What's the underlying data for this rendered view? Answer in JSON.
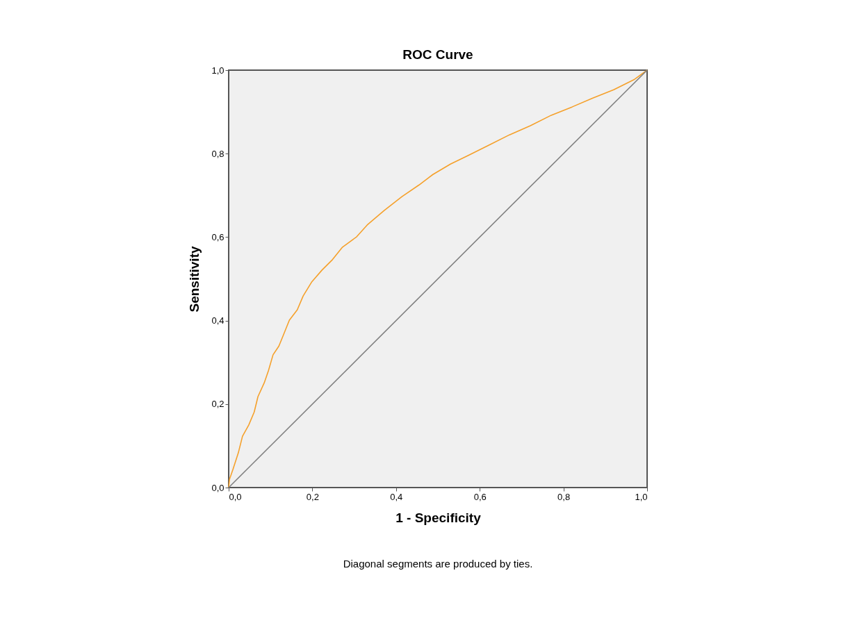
{
  "chart_data": {
    "type": "line",
    "title": "ROC Curve",
    "xlabel": "1 - Specificity",
    "ylabel": "Sensitivity",
    "annotations": [
      "Diagonal segments are produced by ties."
    ],
    "xlim": [
      0,
      1
    ],
    "ylim": [
      0,
      1
    ],
    "xticks": [
      {
        "value": 0,
        "label": "0,0"
      },
      {
        "value": 0.2,
        "label": "0,2"
      },
      {
        "value": 0.4,
        "label": "0,4"
      },
      {
        "value": 0.6,
        "label": "0,6"
      },
      {
        "value": 0.8,
        "label": "0,8"
      },
      {
        "value": 1,
        "label": "1,0"
      }
    ],
    "yticks": [
      {
        "value": 0,
        "label": "0,0"
      },
      {
        "value": 0.2,
        "label": "0,2"
      },
      {
        "value": 0.4,
        "label": "0,4"
      },
      {
        "value": 0.6,
        "label": "0,6"
      },
      {
        "value": 0.8,
        "label": "0,8"
      },
      {
        "value": 1,
        "label": "1,0"
      }
    ],
    "grid": false,
    "series": [
      {
        "color": "#f5a02a",
        "x": [
          0,
          0.002,
          0.01,
          0.023,
          0.033,
          0.048,
          0.061,
          0.07,
          0.085,
          0.095,
          0.106,
          0.12,
          0.131,
          0.145,
          0.164,
          0.178,
          0.198,
          0.223,
          0.248,
          0.272,
          0.306,
          0.331,
          0.372,
          0.414,
          0.455,
          0.488,
          0.53,
          0.571,
          0.621,
          0.671,
          0.721,
          0.771,
          0.821,
          0.87,
          0.92,
          0.97,
          1
        ],
        "values": [
          0,
          0.02,
          0.043,
          0.083,
          0.123,
          0.15,
          0.181,
          0.218,
          0.251,
          0.28,
          0.318,
          0.339,
          0.366,
          0.401,
          0.426,
          0.459,
          0.492,
          0.521,
          0.546,
          0.576,
          0.601,
          0.629,
          0.664,
          0.697,
          0.725,
          0.75,
          0.775,
          0.795,
          0.82,
          0.845,
          0.867,
          0.892,
          0.912,
          0.933,
          0.953,
          0.978,
          1
        ]
      },
      {
        "color": "#808080",
        "x": [
          0,
          1
        ],
        "values": [
          0,
          1
        ]
      }
    ]
  }
}
